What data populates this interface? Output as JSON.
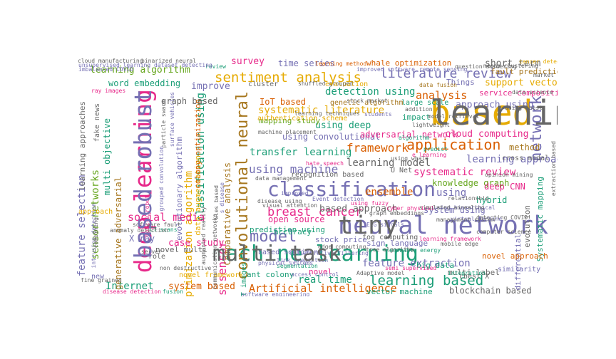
{
  "palette": {
    "teal": "#1b9e77",
    "orange": "#d95f02",
    "purple": "#7570b3",
    "pink": "#e7298a",
    "green": "#66a61e",
    "gold": "#e6ab02",
    "brown": "#a6761d",
    "gray": "#666666"
  },
  "words": [
    {
      "text": "machine learning",
      "color": "teal"
    },
    {
      "text": "deep learning",
      "color": "pink"
    },
    {
      "text": "based",
      "color": "gold"
    },
    {
      "text": "neural network",
      "color": "purple"
    },
    {
      "text": "classification",
      "color": "purple"
    },
    {
      "text": "convolutional neural",
      "color": "brown"
    },
    {
      "text": "sentiment analysis",
      "color": "gold"
    },
    {
      "text": "learning based",
      "color": "teal"
    },
    {
      "text": "network",
      "color": "purple"
    },
    {
      "text": "model",
      "color": "purple"
    },
    {
      "text": "classification using",
      "color": "teal"
    },
    {
      "text": "literature review",
      "color": "purple"
    },
    {
      "text": "application",
      "color": "orange"
    },
    {
      "text": "Artificial intelligence",
      "color": "orange"
    },
    {
      "text": "using machine",
      "color": "purple"
    },
    {
      "text": "analysis",
      "color": "orange"
    },
    {
      "text": "framework",
      "color": "orange"
    },
    {
      "text": "optimization algorithm",
      "color": "gold"
    },
    {
      "text": "Wireless sensor",
      "color": "pink"
    },
    {
      "text": "breast cancer",
      "color": "pink"
    },
    {
      "text": "feature extraction",
      "color": "purple"
    },
    {
      "text": "Comparative analysis",
      "color": "brown"
    },
    {
      "text": "learning algorithm",
      "color": "green"
    },
    {
      "text": "social media",
      "color": "pink"
    },
    {
      "text": "systematic literature",
      "color": "gold"
    },
    {
      "text": "systematic review",
      "color": "pink"
    },
    {
      "text": "transfer learning",
      "color": "teal"
    },
    {
      "text": "using deep",
      "color": "teal"
    },
    {
      "text": "learning model",
      "color": "gray"
    },
    {
      "text": "learning approach",
      "color": "purple"
    },
    {
      "text": "detection using",
      "color": "teal"
    },
    {
      "text": "ensemble",
      "color": "orange"
    },
    {
      "text": "using",
      "color": "purple"
    },
    {
      "text": "feature selection",
      "color": "purple"
    },
    {
      "text": "real time",
      "color": "teal"
    },
    {
      "text": "Internet",
      "color": "teal"
    },
    {
      "text": "sensor networks",
      "color": "green"
    },
    {
      "text": "time series",
      "color": "purple"
    },
    {
      "text": "short term",
      "color": "gray"
    },
    {
      "text": "IoT based",
      "color": "orange"
    },
    {
      "text": "using convolutional",
      "color": "purple"
    },
    {
      "text": "adversarial network",
      "color": "pink"
    },
    {
      "text": "cloud computing",
      "color": "pink"
    },
    {
      "text": "based approach",
      "color": "gray"
    },
    {
      "text": "open source",
      "color": "pink"
    },
    {
      "text": "survey",
      "color": "pink"
    },
    {
      "text": "support vector",
      "color": "gold"
    },
    {
      "text": "approach using",
      "color": "purple"
    },
    {
      "text": "word embedding",
      "color": "teal"
    },
    {
      "text": "graph based",
      "color": "gray"
    },
    {
      "text": "improve",
      "color": "purple"
    },
    {
      "text": "case study",
      "color": "pink"
    },
    {
      "text": "system based",
      "color": "orange"
    },
    {
      "text": "vector machine",
      "color": "teal"
    },
    {
      "text": "blockchain based",
      "color": "gray"
    },
    {
      "text": "knowledge graph",
      "color": "green"
    },
    {
      "text": "hybrid",
      "color": "teal"
    },
    {
      "text": "deep CNN",
      "color": "pink"
    },
    {
      "text": "method",
      "color": "brown"
    },
    {
      "text": "system using",
      "color": "purple"
    },
    {
      "text": "whale optimization",
      "color": "orange"
    },
    {
      "text": "fault prediction",
      "color": "brown"
    },
    {
      "text": "generative adversarial",
      "color": "brown"
    },
    {
      "text": "multi objective",
      "color": "teal"
    },
    {
      "text": "learning approaches",
      "color": "gray"
    },
    {
      "text": "novel multi",
      "color": "gray"
    },
    {
      "text": "X ray",
      "color": "purple"
    },
    {
      "text": "prediction using",
      "color": "teal"
    },
    {
      "text": "accuracy",
      "color": "teal"
    },
    {
      "text": "evolutionary algorithm",
      "color": "purple"
    },
    {
      "text": "data augmentation",
      "color": "gold"
    },
    {
      "text": "colony optimization",
      "color": "orange"
    },
    {
      "text": "evolution",
      "color": "gray"
    },
    {
      "text": "differential",
      "color": "purple"
    },
    {
      "text": "Systematic mapping",
      "color": "teal"
    },
    {
      "text": "Things",
      "color": "purple"
    },
    {
      "text": "service composition",
      "color": "pink"
    },
    {
      "text": "ant colony",
      "color": "teal"
    },
    {
      "text": "novel",
      "color": "pink"
    },
    {
      "text": "stock price",
      "color": "purple"
    },
    {
      "text": "sign language",
      "color": "purple"
    },
    {
      "text": "big data",
      "color": "teal"
    },
    {
      "text": "multi label",
      "color": "gray"
    },
    {
      "text": "novel approach",
      "color": "orange"
    },
    {
      "text": "mapping study",
      "color": "green"
    },
    {
      "text": "large scale",
      "color": "teal"
    },
    {
      "text": "impact",
      "color": "teal"
    },
    {
      "text": "authentication scheme",
      "color": "gold"
    },
    {
      "text": "genetic algorithm",
      "color": "brown"
    },
    {
      "text": "evaluation",
      "color": "gold"
    },
    {
      "text": "cluster",
      "color": "gray"
    },
    {
      "text": "based sentiment",
      "color": "purple"
    },
    {
      "text": "fog computing",
      "color": "gray"
    },
    {
      "text": "recognition based",
      "color": "gray"
    },
    {
      "text": "novel framework",
      "color": "gold"
    },
    {
      "text": "new",
      "color": "purple"
    },
    {
      "text": "CT images",
      "color": "teal"
    },
    {
      "text": "fake news",
      "color": "gray"
    },
    {
      "text": "cloud manufacturing",
      "color": "gray"
    },
    {
      "text": "binarized neural",
      "color": "gray"
    },
    {
      "text": "cancer detection",
      "color": "gold"
    },
    {
      "text": "cross modal",
      "color": "gray"
    },
    {
      "text": "U Net",
      "color": "gray"
    },
    {
      "text": "chest X",
      "color": "gray"
    },
    {
      "text": "approach",
      "color": "gold"
    },
    {
      "text": "role",
      "color": "gray"
    },
    {
      "text": "similarity",
      "color": "purple"
    },
    {
      "text": "integration",
      "color": "teal"
    },
    {
      "text": "fusion",
      "color": "teal"
    },
    {
      "text": "disease detection",
      "color": "pink"
    },
    {
      "text": "link prediction",
      "color": "purple"
    },
    {
      "text": "segmentation",
      "color": "teal"
    },
    {
      "text": "intrusion detection",
      "color": "purple"
    },
    {
      "text": "CT scans",
      "color": "teal"
    },
    {
      "text": "predict",
      "color": "teal"
    },
    {
      "text": "data fusion",
      "color": "brown"
    },
    {
      "text": "ray images",
      "color": "pink"
    },
    {
      "text": "shuffled grouped",
      "color": "gray"
    },
    {
      "text": "learning method",
      "color": "orange"
    },
    {
      "text": "improved software",
      "color": "purple"
    },
    {
      "text": "remote sensing",
      "color": "purple"
    },
    {
      "text": "particle swarm",
      "color": "gray"
    },
    {
      "text": "surface vehicles",
      "color": "purple"
    },
    {
      "text": "review",
      "color": "teal"
    },
    {
      "text": "improved",
      "color": "purple"
    },
    {
      "text": "learning techniques",
      "color": "gray"
    },
    {
      "text": "collaborative filtering",
      "color": "purple"
    },
    {
      "text": "edge computing",
      "color": "gray"
    },
    {
      "text": "tree algorithm",
      "color": "gray"
    },
    {
      "text": "renewable energy",
      "color": "teal"
    },
    {
      "text": "graph embeddings",
      "color": "gray"
    },
    {
      "text": "mobile edge",
      "color": "gray"
    },
    {
      "text": "model retrieval",
      "color": "gray"
    },
    {
      "text": "algorithm",
      "color": "teal"
    },
    {
      "text": "using whale",
      "color": "gray"
    },
    {
      "text": "cyber physical",
      "color": "pink"
    },
    {
      "text": "detecting COVID",
      "color": "gray"
    },
    {
      "text": "virtual machine",
      "color": "purple"
    },
    {
      "text": "management system",
      "color": "gray"
    },
    {
      "text": "computer science",
      "color": "gray"
    },
    {
      "text": "question answering",
      "color": "gray"
    },
    {
      "text": "market prediction",
      "color": "gray"
    },
    {
      "text": "combining",
      "color": "gray"
    },
    {
      "text": "server",
      "color": "gray"
    },
    {
      "text": "access control",
      "color": "purple"
    },
    {
      "text": "semi supervised",
      "color": "pink"
    },
    {
      "text": "rules based",
      "color": "gray"
    },
    {
      "text": "s disease",
      "color": "purple"
    },
    {
      "text": "data management",
      "color": "gray"
    },
    {
      "text": "disease using",
      "color": "gray"
    },
    {
      "text": "hate speech",
      "color": "pink"
    },
    {
      "text": "Event detection",
      "color": "purple"
    },
    {
      "text": "using fuzzy",
      "color": "pink"
    },
    {
      "text": "using hierarchical",
      "color": "purple"
    },
    {
      "text": "extraction based",
      "color": "gray"
    },
    {
      "text": "mobile robot",
      "color": "pink"
    },
    {
      "text": "grouped convolution",
      "color": "purple"
    },
    {
      "text": "augmented reality",
      "color": "gray"
    },
    {
      "text": "Communication networks",
      "color": "gray"
    },
    {
      "text": "software engineering",
      "color": "purple"
    },
    {
      "text": "learning framework",
      "color": "pink"
    },
    {
      "text": "physical systems",
      "color": "purple"
    },
    {
      "text": "students",
      "color": "purple"
    },
    {
      "text": "unsupervised learning dataset detecting",
      "color": "purple"
    },
    {
      "text": "imbalanced COVID",
      "color": "purple"
    },
    {
      "text": "machine placement",
      "color": "gray"
    },
    {
      "text": "relationship",
      "color": "gray"
    },
    {
      "text": "opinion mining",
      "color": "gray"
    },
    {
      "text": "simulated annealing",
      "color": "gray"
    },
    {
      "text": "e learning",
      "color": "pink"
    },
    {
      "text": "means clustering",
      "color": "gray"
    },
    {
      "text": "data science",
      "color": "gray"
    },
    {
      "text": "using chest",
      "color": "gray"
    },
    {
      "text": "software fault",
      "color": "gray"
    },
    {
      "text": "Adaptive model",
      "color": "gray"
    },
    {
      "text": "fine grained",
      "color": "gray"
    },
    {
      "text": "non destructive",
      "color": "gray"
    },
    {
      "text": "EEG signals",
      "color": "purple"
    },
    {
      "text": "stock market",
      "color": "gray"
    },
    {
      "text": "visual attention",
      "color": "gray"
    },
    {
      "text": "anomaly detection",
      "color": "gray"
    },
    {
      "text": "lightweight",
      "color": "gray"
    },
    {
      "text": "addition",
      "color": "gray"
    },
    {
      "text": "multi task",
      "color": "gray"
    },
    {
      "text": "based robust",
      "color": "purple"
    },
    {
      "text": "learning model",
      "color": "gray"
    },
    {
      "text": "tiny",
      "color": "gray"
    }
  ]
}
